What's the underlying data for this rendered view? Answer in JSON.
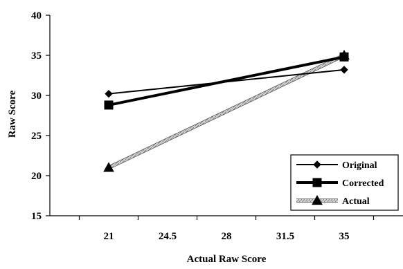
{
  "chart_data": {
    "type": "line",
    "xlabel": "Actual Raw Score",
    "ylabel": "Raw Score",
    "x_ticks": [
      "21",
      "24.5",
      "28",
      "31.5",
      "35"
    ],
    "x_tick_values": [
      21,
      24.5,
      28,
      31.5,
      35
    ],
    "y_ticks": [
      "15",
      "20",
      "25",
      "30",
      "35",
      "40"
    ],
    "y_tick_values": [
      15,
      20,
      25,
      30,
      35,
      40
    ],
    "xlim": [
      17.5,
      38.5
    ],
    "ylim": [
      15,
      40
    ],
    "grid": false,
    "legend_position": "bottom-right",
    "series": [
      {
        "name": "Original",
        "marker": "diamond",
        "line_style": "solid",
        "color": "#000000",
        "x": [
          21,
          35
        ],
        "y": [
          30.2,
          33.2
        ]
      },
      {
        "name": "Corrected",
        "marker": "square",
        "line_style": "solid-thick",
        "color": "#000000",
        "x": [
          21,
          35
        ],
        "y": [
          28.8,
          34.8
        ]
      },
      {
        "name": "Actual",
        "marker": "triangle",
        "line_style": "hatched",
        "color": "#9a9a9a",
        "x": [
          21,
          35
        ],
        "y": [
          21,
          35
        ]
      }
    ]
  }
}
